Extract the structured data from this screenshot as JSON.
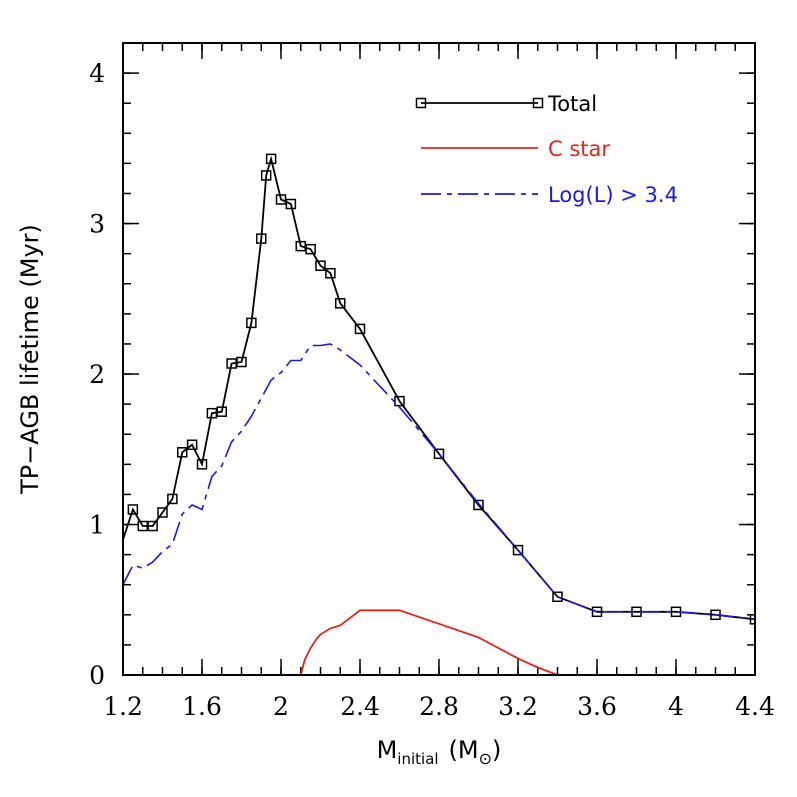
{
  "chart_data": {
    "type": "line",
    "xlabel": "M",
    "xlabel_sub": "initial",
    "xlabel_unit_open": "(M",
    "xlabel_unit_sub": "⊙",
    "xlabel_unit_close": ")",
    "ylabel": "TP−AGB lifetime (Myr)",
    "xlim": [
      1.2,
      4.4
    ],
    "ylim": [
      0,
      4.2
    ],
    "x_ticks": [
      "1.2",
      "1.6",
      "2",
      "2.4",
      "2.8",
      "3.2",
      "3.6",
      "4",
      "4.4"
    ],
    "y_ticks": [
      "0",
      "1",
      "2",
      "3",
      "4"
    ],
    "x_tick_values": [
      1.2,
      1.6,
      2.0,
      2.4,
      2.8,
      3.2,
      3.6,
      4.0,
      4.4
    ],
    "y_tick_values": [
      0,
      1,
      2,
      3,
      4
    ],
    "x_minor_step": 0.1,
    "y_minor_step": 0.2,
    "grid": false,
    "legend_position": "top-right",
    "series": [
      {
        "name": "Total",
        "color": "#000000",
        "style": "solid",
        "marker": "open-square",
        "x": [
          1.2,
          1.25,
          1.3,
          1.35,
          1.4,
          1.45,
          1.5,
          1.55,
          1.6,
          1.65,
          1.7,
          1.75,
          1.8,
          1.85,
          1.9,
          1.925,
          1.95,
          2.0,
          2.05,
          2.1,
          2.15,
          2.2,
          2.25,
          2.3,
          2.4,
          2.6,
          2.8,
          3.0,
          3.2,
          3.4,
          3.6,
          3.8,
          4.0,
          4.2,
          4.4
        ],
        "y": [
          0.9,
          1.1,
          0.99,
          0.99,
          1.08,
          1.17,
          1.48,
          1.53,
          1.4,
          1.74,
          1.75,
          2.07,
          2.08,
          2.34,
          2.9,
          3.32,
          3.43,
          3.16,
          3.13,
          2.85,
          2.83,
          2.72,
          2.67,
          2.47,
          2.3,
          1.82,
          1.47,
          1.13,
          0.83,
          0.52,
          0.42,
          0.42,
          0.42,
          0.4,
          0.37
        ],
        "markers_from_index": 1
      },
      {
        "name": "C star",
        "color": "#e8231a",
        "style": "solid",
        "marker": "none",
        "x": [
          2.1,
          2.12,
          2.15,
          2.18,
          2.2,
          2.25,
          2.3,
          2.4,
          2.5,
          2.6,
          2.8,
          3.0,
          3.2,
          3.3,
          3.4
        ],
        "y": [
          0.0,
          0.1,
          0.18,
          0.24,
          0.27,
          0.31,
          0.33,
          0.43,
          0.43,
          0.43,
          0.34,
          0.25,
          0.11,
          0.05,
          0.0
        ]
      },
      {
        "name": "Log(L) > 3.4",
        "color": "#1a1ae6",
        "style": "dashdot",
        "marker": "none",
        "x": [
          1.2,
          1.25,
          1.3,
          1.35,
          1.4,
          1.45,
          1.5,
          1.55,
          1.6,
          1.65,
          1.7,
          1.75,
          1.8,
          1.85,
          1.9,
          1.95,
          2.0,
          2.05,
          2.1,
          2.15,
          2.2,
          2.25,
          2.3,
          2.4,
          2.6,
          2.8,
          3.0,
          3.2,
          3.4,
          3.6,
          3.8,
          4.0,
          4.2,
          4.4
        ],
        "y": [
          0.6,
          0.73,
          0.71,
          0.75,
          0.82,
          0.87,
          1.07,
          1.13,
          1.1,
          1.32,
          1.39,
          1.55,
          1.62,
          1.72,
          1.84,
          1.96,
          2.01,
          2.09,
          2.09,
          2.19,
          2.19,
          2.2,
          2.16,
          2.06,
          1.78,
          1.47,
          1.14,
          0.83,
          0.52,
          0.42,
          0.42,
          0.42,
          0.4,
          0.37
        ]
      }
    ]
  }
}
